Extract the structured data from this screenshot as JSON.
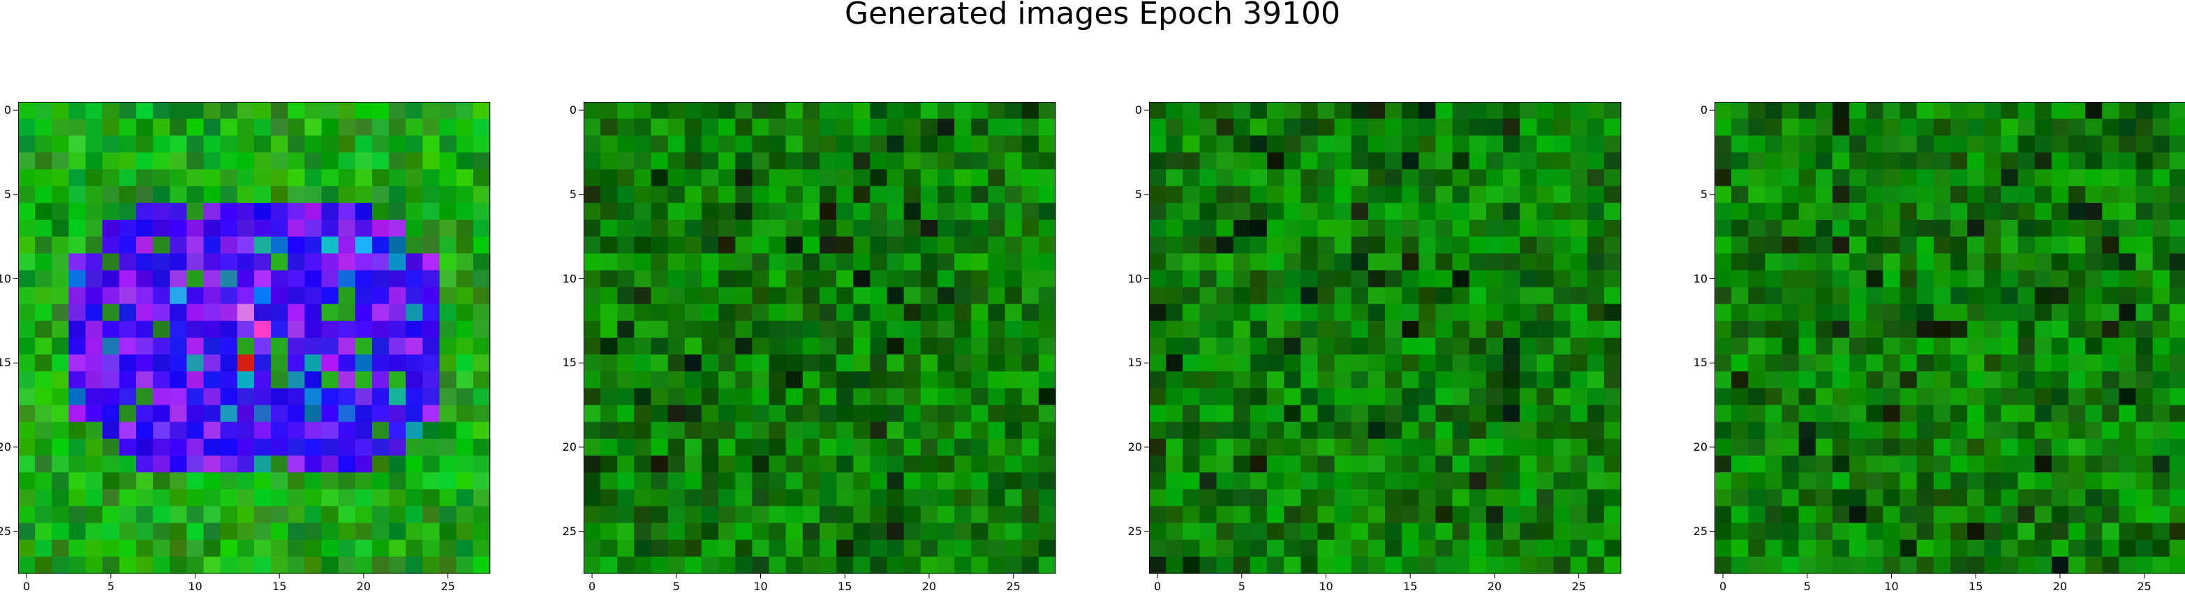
{
  "title": "Generated images Epoch 39100",
  "chart_data": [
    {
      "type": "heatmap",
      "title": "",
      "grid_size": 28,
      "xlim": [
        -0.5,
        27.5
      ],
      "ylim": [
        27.5,
        -0.5
      ],
      "xticks": [
        0,
        5,
        10,
        15,
        20,
        25
      ],
      "yticks": [
        0,
        5,
        10,
        15,
        20,
        25
      ],
      "grid": false,
      "dominant_colors": [
        "#1f8a2a",
        "#1a24f0",
        "#7a22f5"
      ],
      "description_key": "green noise with a blue/purple ring blob in centre"
    },
    {
      "type": "heatmap",
      "title": "",
      "grid_size": 28,
      "xlim": [
        -0.5,
        27.5
      ],
      "ylim": [
        27.5,
        -0.5
      ],
      "xticks": [
        0,
        5,
        10,
        15,
        20,
        25
      ],
      "yticks": [
        0,
        5,
        10,
        15,
        20,
        25
      ],
      "grid": false,
      "dominant_colors": [
        "#157a15",
        "#0b3d0b",
        "#2aa52a"
      ]
    },
    {
      "type": "heatmap",
      "title": "",
      "grid_size": 28,
      "xlim": [
        -0.5,
        27.5
      ],
      "ylim": [
        27.5,
        -0.5
      ],
      "xticks": [
        0,
        5,
        10,
        15,
        20,
        25
      ],
      "yticks": [
        0,
        5,
        10,
        15,
        20,
        25
      ],
      "grid": false,
      "dominant_colors": [
        "#137813",
        "#0a3a0a",
        "#3ab33a"
      ]
    },
    {
      "type": "heatmap",
      "title": "",
      "grid_size": 28,
      "xlim": [
        -0.5,
        27.5
      ],
      "ylim": [
        27.5,
        -0.5
      ],
      "xticks": [
        0,
        5,
        10,
        15,
        20,
        25
      ],
      "yticks": [
        0,
        5,
        10,
        15,
        20,
        25
      ],
      "grid": false,
      "dominant_colors": [
        "#177f17",
        "#0c420c",
        "#36ad36"
      ]
    }
  ]
}
